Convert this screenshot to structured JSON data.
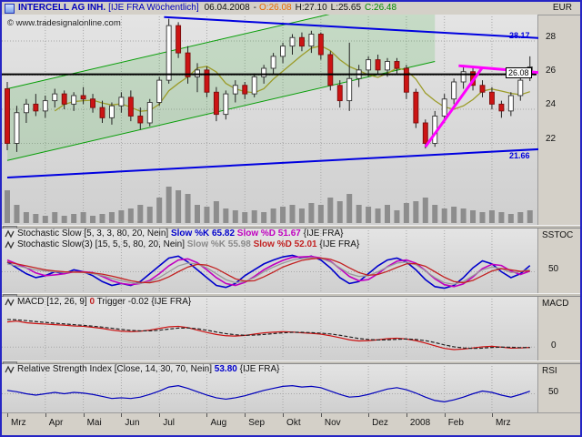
{
  "window": {
    "currency": "EUR",
    "watermark": "© www.tradesignalonline.com"
  },
  "title": {
    "instrument": "INTERCELL AG INH.",
    "context": "[IJE FRA  Wöchentlich]",
    "date": "06.04.2008",
    "sep": "-",
    "open": "O:26.08",
    "high": "H:27.10",
    "low": "L:25.65",
    "close": "C:26.48"
  },
  "main_axis": {
    "ticks": [
      "28",
      "26",
      "24",
      "22"
    ],
    "tags": {
      "upper_line": "28.17",
      "last_price": "26.08",
      "lower_line": "21.66"
    }
  },
  "panels": {
    "stoch": {
      "axis_name": "SSTOC",
      "mid_label": "50",
      "line1_name": "Stochastic Slow [5, 3, 3, 80, 20, Nein]",
      "line1_k": "Slow %K 65.82",
      "line1_d": "Slow %D 51.67",
      "line1_suffix": "{IJE FRA}",
      "line2_name": "Stochastic Slow(3) [15, 5, 5, 80, 20, Nein]",
      "line2_k": "Slow %K 55.98",
      "line2_d": "Slow %D 52.01",
      "line2_suffix": "{IJE FRA}"
    },
    "macd": {
      "axis_name": "MACD",
      "zero_label": "0",
      "name": "MACD [12, 26, 9]",
      "value": "0",
      "trigger": "Trigger -0.02",
      "suffix": "{IJE FRA}"
    },
    "rsi": {
      "axis_name": "RSI",
      "mid_label": "50",
      "name": "Relative Strength Index [Close, 14, 30, 70, Nein]",
      "value": "53.80",
      "suffix": "{IJE FRA}"
    }
  },
  "months": [
    "Mrz",
    "Apr",
    "Mai",
    "Jun",
    "Jul",
    "Aug",
    "Sep",
    "Okt",
    "Nov",
    "Dez",
    "2008",
    "Feb",
    "Mrz"
  ],
  "chart_data": [
    {
      "type": "candlestick",
      "title": "INTERCELL AG INH. [IJE FRA] weekly",
      "ylabel": "EUR",
      "ylim": [
        20,
        29.8
      ],
      "y_gridlines": [
        22,
        24,
        26,
        28
      ],
      "months": [
        "Mrz",
        "Apr",
        "Mai",
        "Jun",
        "Jul",
        "Aug",
        "Sep",
        "Okt",
        "Nov",
        "Dez",
        "2008",
        "Feb",
        "Mrz"
      ],
      "month_starts": [
        0,
        4,
        8,
        12,
        16,
        21,
        25,
        29,
        33,
        38,
        42,
        46,
        51
      ],
      "last_bar": {
        "open": 26.08,
        "high": 27.1,
        "low": 25.65,
        "close": 26.48,
        "date": "06.04.2008"
      },
      "ohlc": [
        [
          25.2,
          25.6,
          21.6,
          22.0
        ],
        [
          22.0,
          24.2,
          21.5,
          23.8
        ],
        [
          23.8,
          24.6,
          23.2,
          24.3
        ],
        [
          24.3,
          24.9,
          23.6,
          23.9
        ],
        [
          23.9,
          24.8,
          23.5,
          24.5
        ],
        [
          24.5,
          25.2,
          24.1,
          24.9
        ],
        [
          24.9,
          25.1,
          24.0,
          24.3
        ],
        [
          24.3,
          25.0,
          23.9,
          24.8
        ],
        [
          24.8,
          25.3,
          24.3,
          24.6
        ],
        [
          24.6,
          24.9,
          23.8,
          24.1
        ],
        [
          24.1,
          24.5,
          23.2,
          23.5
        ],
        [
          23.5,
          24.4,
          23.1,
          24.2
        ],
        [
          24.2,
          25.0,
          23.8,
          24.7
        ],
        [
          24.7,
          25.1,
          23.3,
          23.6
        ],
        [
          23.6,
          24.1,
          22.8,
          23.2
        ],
        [
          23.2,
          24.6,
          23.0,
          24.4
        ],
        [
          24.4,
          25.9,
          24.2,
          25.7
        ],
        [
          25.7,
          29.3,
          25.5,
          28.9
        ],
        [
          28.9,
          29.1,
          27.0,
          27.3
        ],
        [
          27.3,
          27.7,
          25.5,
          25.9
        ],
        [
          25.9,
          26.7,
          25.0,
          26.3
        ],
        [
          26.3,
          26.5,
          24.7,
          25.0
        ],
        [
          25.0,
          25.3,
          23.3,
          23.7
        ],
        [
          23.7,
          25.1,
          23.4,
          24.9
        ],
        [
          24.9,
          25.7,
          24.4,
          25.4
        ],
        [
          25.4,
          25.6,
          24.6,
          24.9
        ],
        [
          24.9,
          26.1,
          24.7,
          25.9
        ],
        [
          25.9,
          26.6,
          25.5,
          26.4
        ],
        [
          26.4,
          27.3,
          26.0,
          27.1
        ],
        [
          27.1,
          27.9,
          26.7,
          27.7
        ],
        [
          27.7,
          28.4,
          27.2,
          28.2
        ],
        [
          28.2,
          28.5,
          27.4,
          27.7
        ],
        [
          27.7,
          28.6,
          27.3,
          28.4
        ],
        [
          28.4,
          28.5,
          26.9,
          27.2
        ],
        [
          27.2,
          27.4,
          25.1,
          25.4
        ],
        [
          25.4,
          25.7,
          24.1,
          24.5
        ],
        [
          24.5,
          27.9,
          23.9,
          25.8
        ],
        [
          25.8,
          26.6,
          25.3,
          26.3
        ],
        [
          26.3,
          27.1,
          25.9,
          26.9
        ],
        [
          26.9,
          27.2,
          26.0,
          26.3
        ],
        [
          26.3,
          27.0,
          25.9,
          26.8
        ],
        [
          26.8,
          27.0,
          26.1,
          26.4
        ],
        [
          26.4,
          26.6,
          24.6,
          25.0
        ],
        [
          25.0,
          25.2,
          22.9,
          23.2
        ],
        [
          23.2,
          23.4,
          21.7,
          22.0
        ],
        [
          22.0,
          23.9,
          21.8,
          23.6
        ],
        [
          23.6,
          24.9,
          23.2,
          24.6
        ],
        [
          24.6,
          25.8,
          24.3,
          25.6
        ],
        [
          25.6,
          26.5,
          25.2,
          26.2
        ],
        [
          26.2,
          26.4,
          25.1,
          25.4
        ],
        [
          25.4,
          25.7,
          24.7,
          25.0
        ],
        [
          25.0,
          25.3,
          24.0,
          24.3
        ],
        [
          24.3,
          24.5,
          23.5,
          23.9
        ],
        [
          23.9,
          25.0,
          23.6,
          24.8
        ],
        [
          24.8,
          25.9,
          24.5,
          25.7
        ],
        [
          26.08,
          27.1,
          25.65,
          26.48
        ]
      ],
      "volume": [
        0.9,
        0.5,
        0.3,
        0.25,
        0.2,
        0.3,
        0.2,
        0.25,
        0.3,
        0.2,
        0.25,
        0.3,
        0.35,
        0.4,
        0.5,
        0.45,
        0.7,
        1.0,
        0.9,
        0.8,
        0.5,
        0.45,
        0.6,
        0.4,
        0.35,
        0.3,
        0.35,
        0.3,
        0.4,
        0.45,
        0.5,
        0.4,
        0.55,
        0.5,
        0.7,
        0.6,
        0.8,
        0.5,
        0.45,
        0.4,
        0.5,
        0.35,
        0.55,
        0.6,
        0.7,
        0.5,
        0.4,
        0.45,
        0.4,
        0.35,
        0.3,
        0.35,
        0.3,
        0.25,
        0.3,
        0.35
      ],
      "overlays": {
        "horizontal_level": 26.05,
        "channel": {
          "from_week": 0,
          "to_week": 45,
          "lower_from": 21.0,
          "lower_to": 26.8,
          "width": 4.2,
          "color": "#089e08"
        },
        "trendlines": [
          {
            "name": "resistance",
            "from": [
              16.5,
              29.4
            ],
            "to": [
              56,
              28.17
            ],
            "color": "#0000e0",
            "width": 2
          },
          {
            "name": "support",
            "from": [
              0,
              20.0
            ],
            "to": [
              56,
              21.66
            ],
            "color": "#0000e0",
            "width": 2
          },
          {
            "name": "magenta-rising",
            "from": [
              44,
              21.8
            ],
            "to": [
              50,
              26.45
            ],
            "color": "#ff00ff",
            "width": 3
          },
          {
            "name": "magenta-upper",
            "from": [
              47.5,
              26.55
            ],
            "to": [
              56,
              26.15
            ],
            "color": "#ff00ff",
            "width": 3
          }
        ]
      }
    },
    {
      "type": "line",
      "name": "Stochastic Slow",
      "ylim": [
        0,
        100
      ],
      "gridline": 50,
      "series": [
        {
          "name": "slow-k-5-3-3",
          "value": 65.82,
          "color": "#0000cc",
          "width": 1.6,
          "values": [
            75,
            60,
            45,
            35,
            40,
            50,
            45,
            55,
            50,
            40,
            25,
            15,
            20,
            15,
            25,
            45,
            65,
            85,
            90,
            75,
            55,
            35,
            15,
            10,
            20,
            40,
            55,
            70,
            80,
            88,
            92,
            85,
            90,
            80,
            60,
            35,
            20,
            25,
            45,
            65,
            80,
            85,
            75,
            55,
            30,
            12,
            8,
            15,
            35,
            60,
            78,
            70,
            50,
            35,
            45,
            65.82
          ]
        },
        {
          "name": "slow-d-5-3-3",
          "value": 51.67,
          "color": "#c000c0",
          "width": 1.6,
          "values": [
            80,
            70,
            60,
            47,
            40,
            42,
            45,
            50,
            50,
            48,
            38,
            27,
            20,
            17,
            20,
            28,
            45,
            65,
            80,
            83,
            73,
            55,
            35,
            20,
            15,
            23,
            38,
            55,
            68,
            79,
            87,
            88,
            89,
            85,
            77,
            58,
            38,
            27,
            30,
            45,
            63,
            77,
            80,
            72,
            53,
            32,
            17,
            12,
            19,
            37,
            58,
            69,
            66,
            52,
            43,
            51.67
          ]
        },
        {
          "name": "slow-k-15-5-5",
          "value": 55.98,
          "color": "#9a9a9a",
          "width": 1.3,
          "values": [
            70,
            65,
            60,
            55,
            52,
            50,
            48,
            50,
            48,
            45,
            40,
            33,
            27,
            22,
            20,
            25,
            35,
            50,
            65,
            72,
            70,
            60,
            45,
            30,
            22,
            25,
            35,
            50,
            62,
            72,
            80,
            84,
            86,
            84,
            75,
            60,
            45,
            38,
            40,
            50,
            62,
            72,
            75,
            68,
            52,
            35,
            22,
            18,
            25,
            40,
            55,
            62,
            58,
            48,
            50,
            55.98
          ]
        },
        {
          "name": "slow-d-15-5-5",
          "value": 52.01,
          "color": "#c22222",
          "width": 1.3,
          "values": [
            75,
            70,
            65,
            60,
            55,
            52,
            50,
            49,
            49,
            47,
            44,
            39,
            33,
            27,
            23,
            22,
            27,
            37,
            50,
            62,
            69,
            67,
            58,
            45,
            32,
            26,
            27,
            37,
            49,
            62,
            71,
            79,
            83,
            85,
            82,
            73,
            60,
            48,
            41,
            43,
            51,
            61,
            70,
            71,
            64,
            50,
            36,
            25,
            22,
            28,
            40,
            52,
            58,
            55,
            51,
            52.01
          ]
        }
      ]
    },
    {
      "type": "line",
      "name": "MACD",
      "ylim": [
        -0.6,
        2.2
      ],
      "gridline": 0,
      "series": [
        {
          "name": "macd-line",
          "value": 0,
          "color": "#cc1111",
          "width": 1.2,
          "values": [
            1.55,
            1.6,
            1.5,
            1.45,
            1.42,
            1.38,
            1.35,
            1.3,
            1.28,
            1.22,
            1.15,
            1.05,
            0.98,
            0.95,
            0.98,
            1.05,
            1.15,
            1.25,
            1.28,
            1.2,
            1.05,
            0.9,
            0.78,
            0.7,
            0.68,
            0.72,
            0.8,
            0.88,
            0.92,
            0.95,
            0.93,
            0.88,
            0.85,
            0.8,
            0.7,
            0.58,
            0.45,
            0.38,
            0.4,
            0.45,
            0.52,
            0.55,
            0.5,
            0.4,
            0.25,
            0.08,
            -0.08,
            -0.15,
            -0.12,
            -0.05,
            0.02,
            0.05,
            0.0,
            -0.06,
            -0.05,
            -0.02
          ]
        },
        {
          "name": "trigger-line",
          "value": -0.02,
          "color": "#222222",
          "width": 1.2,
          "dash": "4,2",
          "values": [
            1.7,
            1.68,
            1.63,
            1.57,
            1.52,
            1.47,
            1.43,
            1.38,
            1.34,
            1.29,
            1.23,
            1.16,
            1.09,
            1.03,
            1.0,
            1.0,
            1.04,
            1.11,
            1.17,
            1.18,
            1.13,
            1.04,
            0.93,
            0.83,
            0.76,
            0.73,
            0.74,
            0.78,
            0.83,
            0.88,
            0.91,
            0.91,
            0.89,
            0.86,
            0.81,
            0.73,
            0.63,
            0.53,
            0.47,
            0.44,
            0.45,
            0.48,
            0.5,
            0.47,
            0.4,
            0.28,
            0.14,
            0.02,
            -0.05,
            -0.08,
            -0.06,
            -0.02,
            0.0,
            -0.01,
            -0.03,
            -0.02
          ]
        }
      ]
    },
    {
      "type": "line",
      "name": "Relative Strength Index",
      "ylim": [
        25,
        75
      ],
      "gridline": 50,
      "series": [
        {
          "name": "rsi-line",
          "value": 53.8,
          "color": "#0000bb",
          "width": 1.2,
          "values": [
            55,
            53,
            50,
            48,
            50,
            52,
            50,
            52,
            51,
            49,
            46,
            43,
            44,
            43,
            45,
            49,
            54,
            60,
            62,
            58,
            53,
            48,
            44,
            42,
            44,
            47,
            51,
            55,
            58,
            61,
            62,
            60,
            61,
            59,
            54,
            49,
            45,
            46,
            49,
            53,
            57,
            59,
            56,
            51,
            45,
            40,
            38,
            41,
            45,
            50,
            54,
            52,
            48,
            45,
            49,
            53.8
          ]
        }
      ]
    }
  ]
}
